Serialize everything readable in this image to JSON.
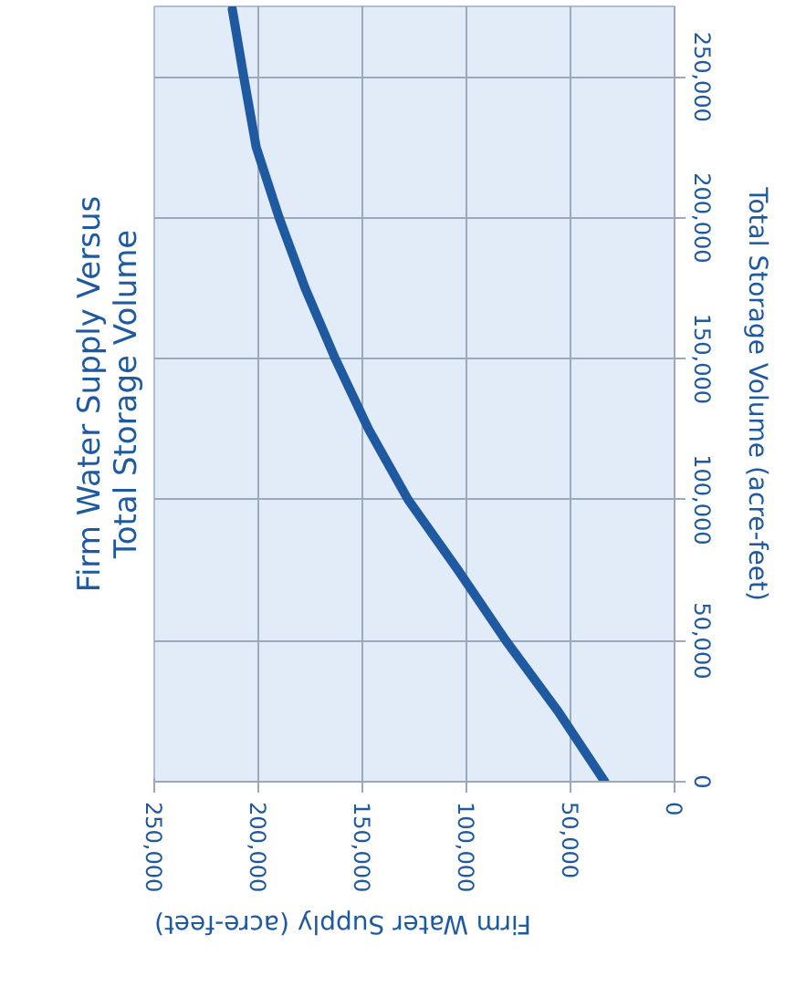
{
  "chart_data": {
    "type": "line",
    "title": "Firm Water Supply Versus\nTotal Storage Volume",
    "xlabel": "Firm Water Supply (acre-feet)",
    "ylabel": "Total Storage Volume (acre-feet)",
    "x": [
      33500,
      56000,
      81000,
      104000,
      128000,
      147000,
      163000,
      177500,
      190000,
      201000,
      207000,
      212500
    ],
    "series": [
      {
        "color": "#1f5aa0",
        "values": [
          0,
          25000,
          50000,
          75000,
          100000,
          125000,
          150000,
          175000,
          200000,
          225000,
          250000,
          274000
        ]
      }
    ],
    "xlim": [
      250000,
      0
    ],
    "xticks": [
      {
        "value": 250000,
        "label": "250,000"
      },
      {
        "value": 200000,
        "label": "200,000"
      },
      {
        "value": 150000,
        "label": "150,000"
      },
      {
        "value": 100000,
        "label": "100,000"
      },
      {
        "value": 50000,
        "label": "50,000"
      },
      0
    ],
    "ylim": [
      0,
      275000
    ],
    "yticks": [
      0,
      {
        "value": 50000,
        "label": "50,000"
      },
      {
        "value": 100000,
        "label": "100,000"
      },
      {
        "value": 150000,
        "label": "150,000"
      },
      {
        "value": 200000,
        "label": "200,000"
      },
      {
        "value": 250000,
        "label": "250,000"
      }
    ],
    "grid": true
  }
}
